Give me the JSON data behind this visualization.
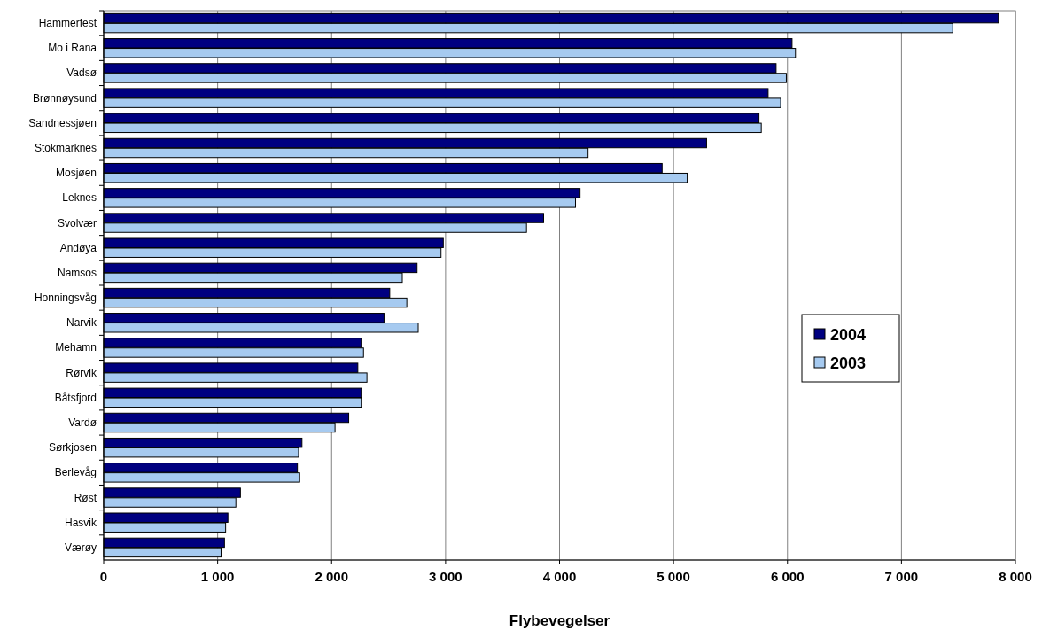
{
  "chart_data": {
    "type": "bar",
    "orientation": "horizontal",
    "xlabel": "Flybevegelser",
    "categories": [
      "Hammerfest",
      "Mo i Rana",
      "Vadsø",
      "Brønnøysund",
      "Sandnessjøen",
      "Stokmarknes",
      "Mosjøen",
      "Leknes",
      "Svolvær",
      "Andøya",
      "Namsos",
      "Honningsvåg",
      "Narvik",
      "Mehamn",
      "Rørvik",
      "Båtsfjord",
      "Vardø",
      "Sørkjosen",
      "Berlevåg",
      "Røst",
      "Hasvik",
      "Værøy"
    ],
    "series": [
      {
        "name": "2004",
        "color": "#000080",
        "values": [
          7850,
          6040,
          5900,
          5830,
          5750,
          5290,
          4900,
          4180,
          3860,
          2980,
          2750,
          2510,
          2460,
          2260,
          2230,
          2260,
          2150,
          1740,
          1700,
          1200,
          1090,
          1060
        ]
      },
      {
        "name": "2003",
        "color": "#a6caf0",
        "values": [
          7450,
          6070,
          5990,
          5940,
          5770,
          4250,
          5120,
          4140,
          3710,
          2960,
          2620,
          2660,
          2760,
          2280,
          2310,
          2260,
          2030,
          1710,
          1720,
          1160,
          1070,
          1030
        ]
      }
    ],
    "xlim": [
      0,
      8000
    ],
    "xticks": [
      0,
      {
        "value": 1000,
        "label": "1 000"
      },
      {
        "value": 2000,
        "label": "2 000"
      },
      {
        "value": 3000,
        "label": "3 000"
      },
      {
        "value": 4000,
        "label": "4 000"
      },
      {
        "value": 5000,
        "label": "5 000"
      },
      {
        "value": 6000,
        "label": "6 000"
      },
      {
        "value": 7000,
        "label": "7 000"
      },
      {
        "value": 8000,
        "label": "8 000"
      }
    ],
    "grid": "x",
    "legend": "right"
  }
}
